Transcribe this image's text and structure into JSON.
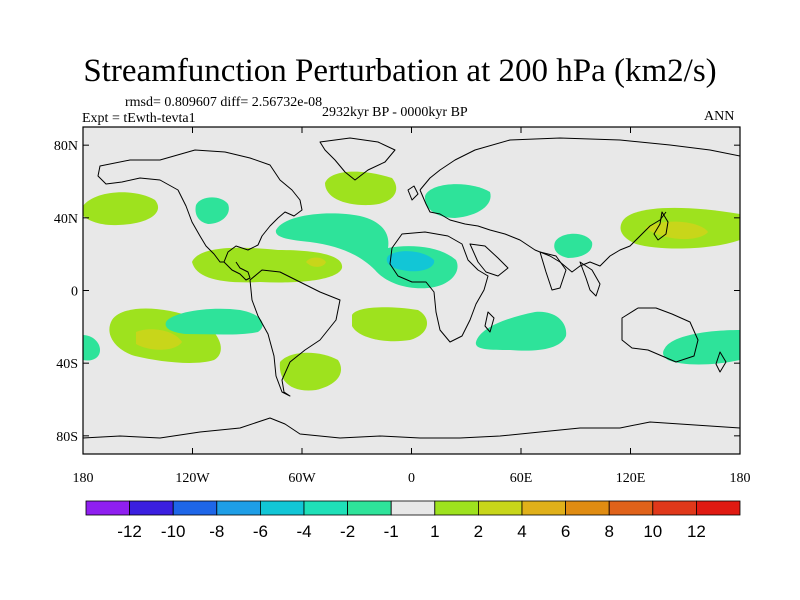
{
  "title": "Streamfunction Perturbation at 200 hPa (km2/s)",
  "stats": "rmsd= 0.809607 diff= 2.56732e-08",
  "experiment": "Expt = tEwth-tevta1",
  "period": "2932kyr BP - 0000kyr BP",
  "season": "ANN",
  "axes": {
    "lat_ticks": [
      "80N",
      "40N",
      "0",
      "40S",
      "80S"
    ],
    "lon_ticks": [
      "180",
      "120W",
      "60W",
      "0",
      "60E",
      "120E",
      "180"
    ]
  },
  "colorbar": {
    "labels": [
      "-12",
      "-10",
      "-8",
      "-6",
      "-4",
      "-2",
      "-1",
      "1",
      "2",
      "4",
      "6",
      "8",
      "10",
      "12"
    ],
    "colors": [
      "#8f1ff0",
      "#3b1fe0",
      "#1e66e8",
      "#1e9ee6",
      "#12c6d6",
      "#1fe0b8",
      "#2ee39a",
      "#e8e8e8",
      "#9ee21e",
      "#c8d61a",
      "#e0b01a",
      "#e08c12",
      "#e0621a",
      "#e0381a",
      "#e01a12"
    ]
  },
  "chart_data": {
    "type": "heatmap",
    "title": "Streamfunction Perturbation at 200 hPa (km2/s)",
    "units": "km2/s",
    "level_hPa": 200,
    "lat_range": [
      -90,
      90
    ],
    "lon_range": [
      -180,
      180
    ],
    "contour_levels": [
      -12,
      -10,
      -8,
      -6,
      -4,
      -2,
      -1,
      1,
      2,
      4,
      6,
      8,
      10,
      12
    ],
    "anomalies": [
      {
        "region": "North Pacific west of North America",
        "center_lon": -170,
        "center_lat": 47,
        "value_range": "1 to 2"
      },
      {
        "region": "Western North America",
        "center_lon": -122,
        "center_lat": 45,
        "value_range": "-2 to -1"
      },
      {
        "region": "Greenland",
        "center_lon": -38,
        "center_lat": 63,
        "value_range": "1 to 2"
      },
      {
        "region": "Scandinavia / Europe",
        "center_lon": 12,
        "center_lat": 57,
        "value_range": "-2 to -1"
      },
      {
        "region": "North Atlantic",
        "center_lon": -40,
        "center_lat": 35,
        "value_range": "-2 to -1"
      },
      {
        "region": "Caribbean / Central America",
        "center_lon": -80,
        "center_lat": 17,
        "value_range": "2 to 4"
      },
      {
        "region": "West Africa / Tropical Atlantic",
        "center_lon": -5,
        "center_lat": 20,
        "value_range": "-4 to -2"
      },
      {
        "region": "Central Asia",
        "center_lon": 70,
        "center_lat": 23,
        "value_range": "-2 to -1"
      },
      {
        "region": "Japan / NW Pacific",
        "center_lon": 150,
        "center_lat": 34,
        "value_range": "2 to 4"
      },
      {
        "region": "Eastern Pacific near equator",
        "center_lon": -115,
        "center_lat": -12,
        "value_range": "-2 to -1"
      },
      {
        "region": "South Atlantic",
        "center_lon": -25,
        "center_lat": -13,
        "value_range": "1 to 2"
      },
      {
        "region": "South Pacific",
        "center_lon": -140,
        "center_lat": -30,
        "value_range": "2 to 4"
      },
      {
        "region": "Dateline south",
        "center_lon": -178,
        "center_lat": -30,
        "value_range": "-2 to -1"
      },
      {
        "region": "Southern South America",
        "center_lon": -68,
        "center_lat": -42,
        "value_range": "1 to 2"
      },
      {
        "region": "Southern Indian Ocean",
        "center_lon": 68,
        "center_lat": -17,
        "value_range": "-2 to -1"
      },
      {
        "region": "South of Australia",
        "center_lon": 158,
        "center_lat": -32,
        "value_range": "-2 to -1"
      }
    ]
  }
}
